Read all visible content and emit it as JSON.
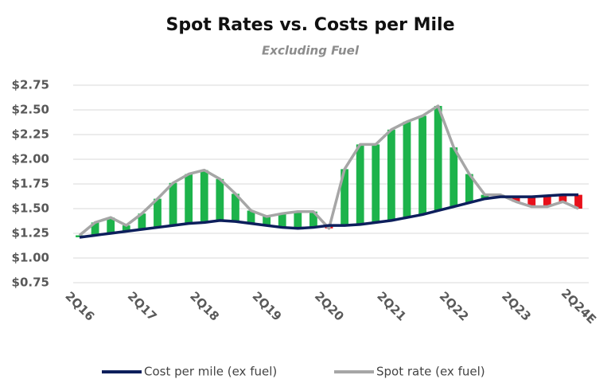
{
  "chart_data": {
    "type": "line-spread",
    "title": "Spot Rates vs. Costs per Mile",
    "subtitle": "Excluding Fuel",
    "categories": [
      "2Q16",
      null,
      null,
      null,
      "2Q17",
      null,
      null,
      null,
      "2Q18",
      null,
      null,
      null,
      "2Q19",
      null,
      null,
      null,
      "2Q20",
      null,
      null,
      null,
      "2Q21",
      null,
      null,
      null,
      "2Q22",
      null,
      null,
      null,
      "2Q23",
      null,
      null,
      null,
      "2Q24E"
    ],
    "series": [
      {
        "name": "Cost per mile (ex fuel)",
        "color": "#0d1f5c",
        "values": [
          1.21,
          1.23,
          1.25,
          1.27,
          1.29,
          1.31,
          1.33,
          1.35,
          1.36,
          1.38,
          1.37,
          1.35,
          1.33,
          1.31,
          1.3,
          1.31,
          1.33,
          1.33,
          1.34,
          1.36,
          1.38,
          1.41,
          1.44,
          1.48,
          1.52,
          1.56,
          1.6,
          1.62,
          1.62,
          1.62,
          1.63,
          1.64,
          1.64
        ]
      },
      {
        "name": "Spot rate (ex fuel)",
        "color": "#a6a6a6",
        "values": [
          1.23,
          1.36,
          1.41,
          1.33,
          1.45,
          1.6,
          1.76,
          1.85,
          1.89,
          1.8,
          1.65,
          1.48,
          1.42,
          1.45,
          1.47,
          1.47,
          1.3,
          1.9,
          2.15,
          2.15,
          2.3,
          2.38,
          2.44,
          2.54,
          2.12,
          1.85,
          1.64,
          1.64,
          1.57,
          1.52,
          1.52,
          1.57,
          1.5
        ]
      }
    ],
    "positive_color": "#1db34b",
    "negative_color": "#e8101a",
    "ylim": [
      0.75,
      2.75
    ],
    "yticks": [
      {
        "value": 0.75,
        "label": "$0.75"
      },
      {
        "value": 1.0,
        "label": "$1.00"
      },
      {
        "value": 1.25,
        "label": "$1.25"
      },
      {
        "value": 1.5,
        "label": "$1.50"
      },
      {
        "value": 1.75,
        "label": "$1.75"
      },
      {
        "value": 2.0,
        "label": "$2.00"
      },
      {
        "value": 2.25,
        "label": "$2.25"
      },
      {
        "value": 2.5,
        "label": "$2.50"
      },
      {
        "value": 2.75,
        "label": "$2.75"
      }
    ],
    "grid": true,
    "legend": "bottom"
  }
}
